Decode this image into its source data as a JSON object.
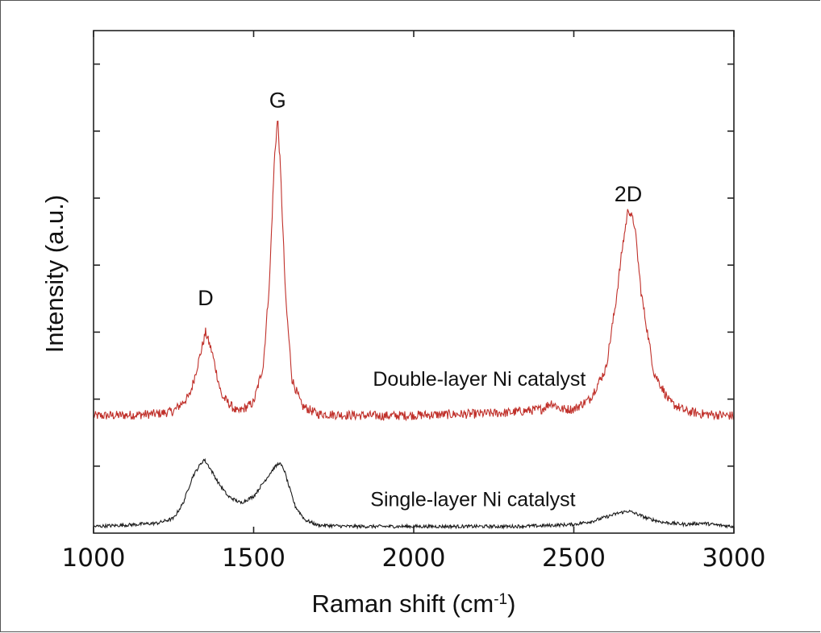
{
  "chart_data": {
    "type": "line",
    "title": "",
    "xlabel": "Raman shift (cm",
    "xlabel_sup": "-1",
    "xlabel_close": ")",
    "ylabel": "Intensity (a.u.)",
    "xlim": [
      1000,
      3000
    ],
    "ylim": [
      0,
      7.5
    ],
    "xticks": [
      1000,
      1500,
      2000,
      2500,
      3000
    ],
    "xtick_labels": [
      "1000",
      "1500",
      "2000",
      "2500",
      "3000"
    ],
    "yticks": [
      1,
      2,
      3,
      4,
      5,
      6,
      7
    ],
    "y_tick_labels_shown": false,
    "grid": false,
    "legend": "none",
    "series": [
      {
        "color": "#c0302a",
        "baseline": 1.75,
        "x": [
          1000,
          1100,
          1200,
          1250,
          1300,
          1330,
          1350,
          1370,
          1400,
          1450,
          1500,
          1530,
          1550,
          1565,
          1575,
          1585,
          1600,
          1620,
          1650,
          1700,
          1800,
          1900,
          2000,
          2100,
          2200,
          2300,
          2400,
          2430,
          2460,
          2500,
          2550,
          2600,
          2630,
          2650,
          2670,
          2690,
          2710,
          2750,
          2800,
          2850,
          2900,
          3000
        ],
        "y": [
          1.75,
          1.76,
          1.78,
          1.82,
          2.05,
          2.6,
          3.0,
          2.7,
          2.05,
          1.8,
          1.95,
          2.5,
          3.8,
          5.6,
          6.2,
          5.3,
          3.5,
          2.3,
          1.9,
          1.78,
          1.76,
          1.75,
          1.76,
          1.77,
          1.78,
          1.8,
          1.85,
          1.95,
          1.85,
          1.85,
          2.0,
          2.45,
          3.4,
          4.2,
          4.85,
          4.6,
          3.6,
          2.4,
          1.95,
          1.82,
          1.78,
          1.75
        ]
      },
      {
        "color": "#1a1a1a",
        "baseline": 0.1,
        "x": [
          1000,
          1100,
          1200,
          1250,
          1280,
          1310,
          1330,
          1345,
          1360,
          1390,
          1420,
          1460,
          1500,
          1530,
          1560,
          1580,
          1595,
          1610,
          1630,
          1660,
          1700,
          1800,
          1900,
          2000,
          2100,
          2200,
          2300,
          2400,
          2500,
          2560,
          2600,
          2640,
          2670,
          2700,
          2730,
          2780,
          2850,
          2900,
          2950,
          3000
        ],
        "y": [
          0.1,
          0.12,
          0.15,
          0.22,
          0.45,
          0.85,
          1.0,
          1.1,
          1.0,
          0.75,
          0.55,
          0.45,
          0.55,
          0.75,
          0.95,
          1.05,
          0.95,
          0.7,
          0.4,
          0.2,
          0.12,
          0.1,
          0.1,
          0.1,
          0.1,
          0.1,
          0.1,
          0.11,
          0.13,
          0.18,
          0.24,
          0.3,
          0.33,
          0.28,
          0.22,
          0.16,
          0.13,
          0.15,
          0.12,
          0.1
        ]
      }
    ],
    "annotations": [
      {
        "text": "D",
        "x": 1350,
        "y": 3.4,
        "kind": "peak"
      },
      {
        "text": "G",
        "x": 1575,
        "y": 6.35,
        "kind": "peak"
      },
      {
        "text": "2D",
        "x": 2670,
        "y": 4.95,
        "kind": "peak"
      },
      {
        "text": "Double-layer Ni catalyst",
        "x": 2205,
        "y": 2.2,
        "kind": "series"
      },
      {
        "text": "Single-layer Ni catalyst",
        "x": 2185,
        "y": 0.4,
        "kind": "series"
      }
    ]
  }
}
